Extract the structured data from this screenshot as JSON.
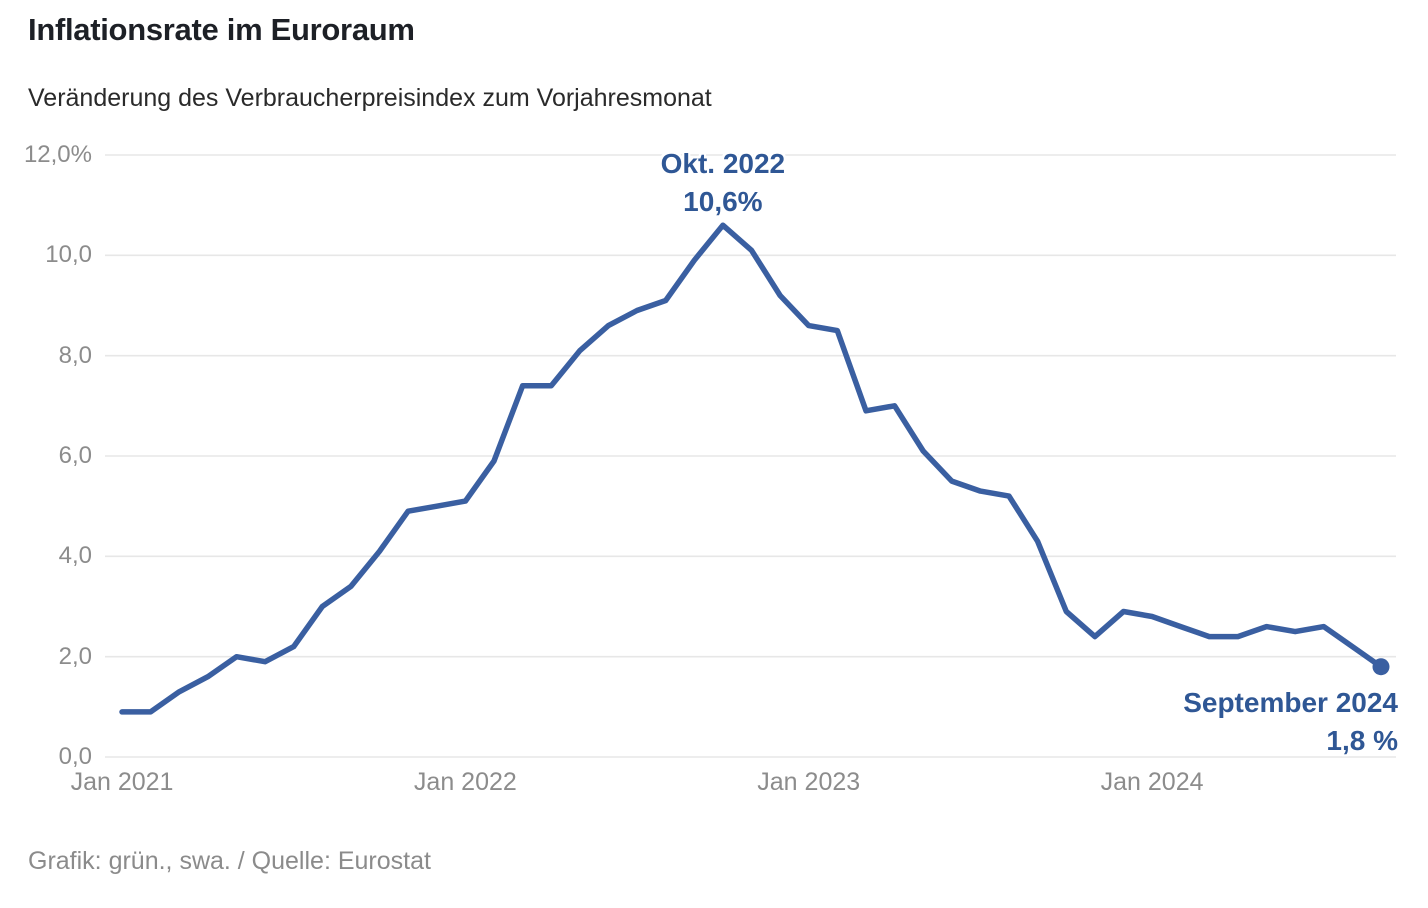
{
  "header": {
    "title": "Inflationsrate im Euroraum",
    "subtitle": "Veränderung des Verbraucherpreisindex zum Vorjahresmonat"
  },
  "footer": {
    "credit": "Grafik: grün., swa. / Quelle: Eurostat"
  },
  "colors": {
    "line": "#3a5fa1",
    "dot": "#3a5fa1",
    "annotation_text": "#2f5795",
    "grid": "#e7e7e7",
    "axis_text": "#8c8c8c",
    "background": "#ffffff"
  },
  "annotations": {
    "peak": {
      "line1": "Okt. 2022",
      "line2": "10,6%",
      "month_index": 21,
      "value": 10.6
    },
    "last": {
      "line1": "September 2024",
      "line2": "1,8 %",
      "month_index": 44,
      "value": 1.8
    }
  },
  "chart_data": {
    "type": "line",
    "title": "Inflationsrate im Euroraum",
    "subtitle": "Veränderung des Verbraucherpreisindex zum Vorjahresmonat",
    "unit": "%",
    "ylim": [
      0,
      12
    ],
    "grid": "horizontal",
    "legend": "none",
    "y_ticks": [
      {
        "label": "12,0%",
        "value": 12
      },
      {
        "label": "10,0",
        "value": 10
      },
      {
        "label": "8,0",
        "value": 8
      },
      {
        "label": "6,0",
        "value": 6
      },
      {
        "label": "4,0",
        "value": 4
      },
      {
        "label": "2,0",
        "value": 2
      },
      {
        "label": "0,0",
        "value": 0
      }
    ],
    "x_ticks": [
      {
        "label": "Jan 2021",
        "month_index": 0
      },
      {
        "label": "Jan 2022",
        "month_index": 12
      },
      {
        "label": "Jan 2023",
        "month_index": 24
      },
      {
        "label": "Jan 2024",
        "month_index": 36
      }
    ],
    "x": [
      "2021-01",
      "2021-02",
      "2021-03",
      "2021-04",
      "2021-05",
      "2021-06",
      "2021-07",
      "2021-08",
      "2021-09",
      "2021-10",
      "2021-11",
      "2021-12",
      "2022-01",
      "2022-02",
      "2022-03",
      "2022-04",
      "2022-05",
      "2022-06",
      "2022-07",
      "2022-08",
      "2022-09",
      "2022-10",
      "2022-11",
      "2022-12",
      "2023-01",
      "2023-02",
      "2023-03",
      "2023-04",
      "2023-05",
      "2023-06",
      "2023-07",
      "2023-08",
      "2023-09",
      "2023-10",
      "2023-11",
      "2023-12",
      "2024-01",
      "2024-02",
      "2024-03",
      "2024-04",
      "2024-05",
      "2024-06",
      "2024-07",
      "2024-08",
      "2024-09"
    ],
    "series": [
      {
        "name": "Inflationsrate",
        "values": [
          0.9,
          0.9,
          1.3,
          1.6,
          2.0,
          1.9,
          2.2,
          3.0,
          3.4,
          4.1,
          4.9,
          5.0,
          5.1,
          5.9,
          7.4,
          7.4,
          8.1,
          8.6,
          8.9,
          9.1,
          9.9,
          10.6,
          10.1,
          9.2,
          8.6,
          8.5,
          6.9,
          7.0,
          6.1,
          5.5,
          5.3,
          5.2,
          4.3,
          2.9,
          2.4,
          2.9,
          2.8,
          2.6,
          2.4,
          2.4,
          2.6,
          2.5,
          2.6,
          2.2,
          1.8
        ]
      }
    ]
  }
}
